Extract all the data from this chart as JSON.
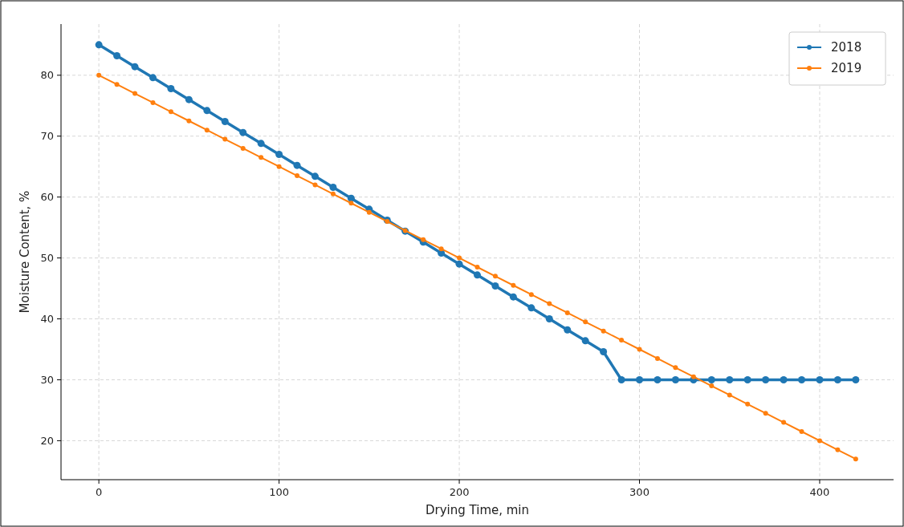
{
  "chart_data": {
    "type": "line",
    "xlabel": "Drying Time, min",
    "ylabel": "Moisture Content, %",
    "x": [
      0,
      10,
      20,
      30,
      40,
      50,
      60,
      70,
      80,
      90,
      100,
      110,
      120,
      130,
      140,
      150,
      160,
      170,
      180,
      190,
      200,
      210,
      220,
      230,
      240,
      250,
      260,
      270,
      280,
      290,
      300,
      310,
      320,
      330,
      340,
      350,
      360,
      370,
      380,
      390,
      400,
      410,
      420
    ],
    "series": [
      {
        "name": "2018",
        "color": "#1f77b4",
        "values": [
          85,
          83.2,
          81.4,
          79.6,
          77.8,
          76,
          74.2,
          72.4,
          70.6,
          68.8,
          67,
          65.2,
          63.4,
          61.6,
          59.8,
          58,
          56.2,
          54.4,
          52.6,
          50.8,
          49,
          47.2,
          45.4,
          43.6,
          41.8,
          40,
          38.2,
          36.4,
          34.6,
          30,
          30,
          30,
          30,
          30,
          30,
          30,
          30,
          30,
          30,
          30,
          30,
          30,
          30
        ]
      },
      {
        "name": "2019",
        "color": "#ff7f0e",
        "values": [
          80,
          78.5,
          77,
          75.5,
          74,
          72.5,
          71,
          69.5,
          68,
          66.5,
          65,
          63.5,
          62,
          60.5,
          59,
          57.5,
          56,
          54.5,
          53,
          51.5,
          50,
          48.5,
          47,
          45.5,
          44,
          42.5,
          41,
          39.5,
          38,
          36.5,
          35,
          33.5,
          32,
          30.5,
          29,
          27.5,
          26,
          24.5,
          23,
          21.5,
          20,
          18.5,
          17
        ]
      }
    ],
    "xlim": [
      -21,
      441
    ],
    "xticks": [
      0,
      100,
      200,
      300,
      400
    ],
    "ylim": [
      13.6,
      88.4
    ],
    "yticks": [
      20,
      30,
      40,
      50,
      60,
      70,
      80
    ],
    "grid": true,
    "legend": "top right",
    "marker": "circle",
    "line_style": "solid"
  }
}
